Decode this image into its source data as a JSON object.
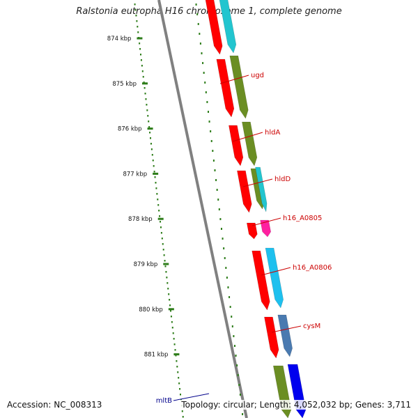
{
  "title": "Ralstonia eutropha H16 chromosome 1, complete genome",
  "accession_label": "Accession: NC_008313",
  "summary_label": "Topology: circular; Length: 4,052,032 bp; Genes: 3,711",
  "colors": {
    "backbone": "#808080",
    "tick": "#2e7d1a",
    "label_red": "#cc0000",
    "label_blue": "#00008b"
  },
  "axis_ticks": [
    "874 kbp",
    "875 kbp",
    "876 kbp",
    "877 kbp",
    "878 kbp",
    "879 kbp",
    "880 kbp",
    "881 kbp"
  ],
  "gene_labels": [
    {
      "name": "ugd",
      "color": "#cc0000"
    },
    {
      "name": "hldA",
      "color": "#cc0000"
    },
    {
      "name": "hldD",
      "color": "#cc0000"
    },
    {
      "name": "h16_A0805",
      "color": "#cc0000"
    },
    {
      "name": "h16_A0806",
      "color": "#cc0000"
    },
    {
      "name": "cysM",
      "color": "#cc0000"
    },
    {
      "name": "mltB",
      "color": "#00008b"
    }
  ],
  "features": [
    {
      "track": "inner",
      "color": "#ff0000"
    },
    {
      "track": "outer",
      "color": "#22c5cf"
    },
    {
      "track": "inner",
      "color": "#ff0000"
    },
    {
      "track": "outer",
      "color": "#6b8e23"
    },
    {
      "track": "inner",
      "color": "#ff0000"
    },
    {
      "track": "outer",
      "color": "#6b8e23"
    },
    {
      "track": "inner",
      "color": "#ff0000"
    },
    {
      "track": "outer",
      "color": "#6b8e23"
    },
    {
      "track": "outer",
      "color": "#22c5cf"
    },
    {
      "track": "inner",
      "color": "#ff0000"
    },
    {
      "track": "outer",
      "color": "#ff20a0"
    },
    {
      "track": "inner",
      "color": "#ff0000"
    },
    {
      "track": "outer",
      "color": "#1ec0ee"
    },
    {
      "track": "inner",
      "color": "#ff0000"
    },
    {
      "track": "outer",
      "color": "#4a7ab0"
    },
    {
      "track": "inner",
      "color": "#6b8e23"
    },
    {
      "track": "outer",
      "color": "#0000ee"
    }
  ]
}
